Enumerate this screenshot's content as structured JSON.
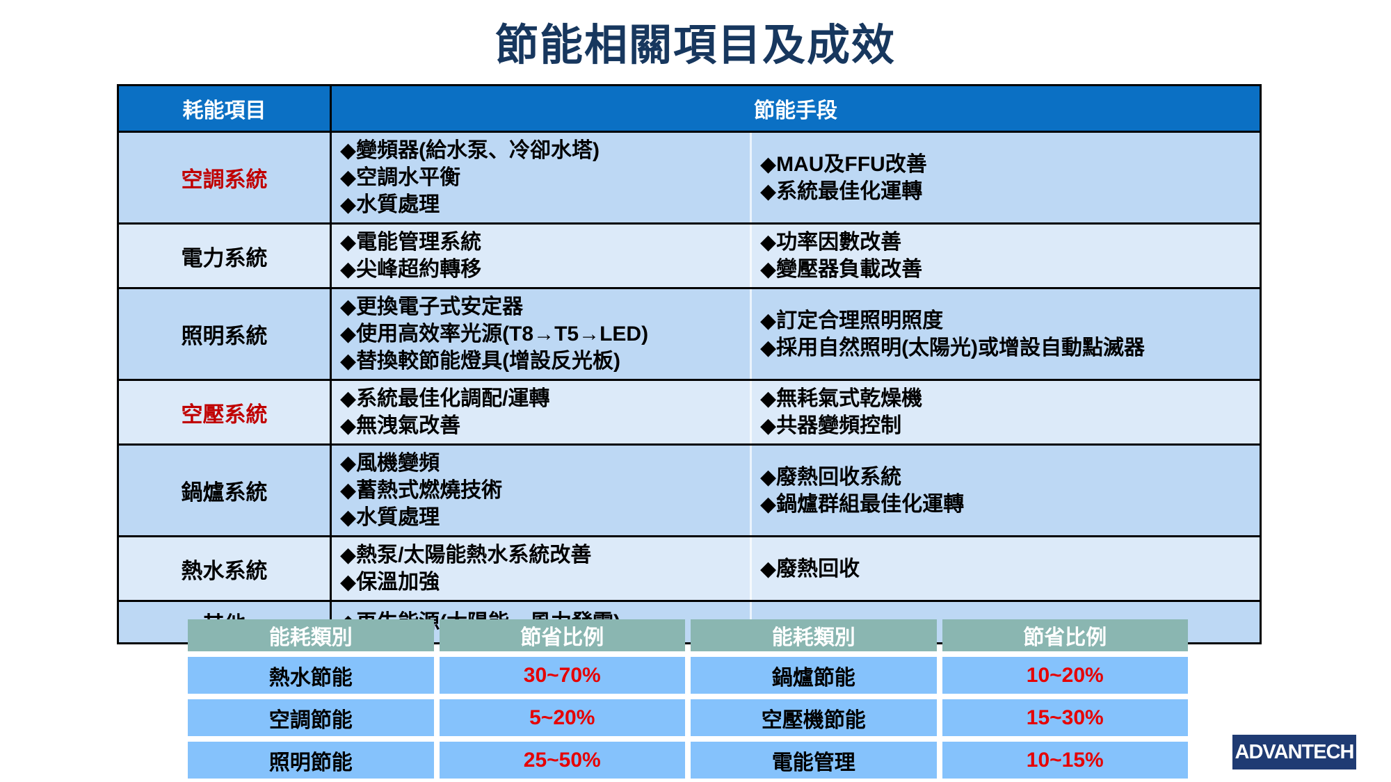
{
  "title": "節能相關項目及成效",
  "main_table": {
    "headers": {
      "item": "耗能項目",
      "methods": "節能手段"
    },
    "rows": [
      {
        "label": "空調系統",
        "red": true,
        "col1": [
          "◆變頻器(給水泵、冷卻水塔)",
          "◆空調水平衡",
          "◆水質處理"
        ],
        "col2": [
          "◆MAU及FFU改善",
          "◆系統最佳化運轉"
        ]
      },
      {
        "label": "電力系統",
        "red": false,
        "col1": [
          "◆電能管理系統",
          "◆尖峰超約轉移"
        ],
        "col2": [
          "◆功率因數改善",
          "◆變壓器負載改善"
        ]
      },
      {
        "label": "照明系統",
        "red": false,
        "col1": [
          "◆更換電子式安定器",
          "◆使用高效率光源(T8→T5→LED)",
          "◆替換較節能燈具(增設反光板)"
        ],
        "col2": [
          "◆訂定合理照明照度",
          "◆採用自然照明(太陽光)或增設自動點滅器"
        ]
      },
      {
        "label": "空壓系統",
        "red": true,
        "col1": [
          "◆系統最佳化調配/運轉",
          "◆無洩氣改善"
        ],
        "col2": [
          "◆無耗氣式乾燥機",
          "◆共器變頻控制"
        ]
      },
      {
        "label": "鍋爐系統",
        "red": false,
        "col1": [
          "◆風機變頻",
          "◆蓄熱式燃燒技術",
          "◆水質處理"
        ],
        "col2": [
          "◆廢熱回收系統",
          "◆鍋爐群組最佳化運轉"
        ]
      },
      {
        "label": "熱水系統",
        "red": false,
        "col1": [
          "◆熱泵/太陽能熱水系統改善",
          "◆保溫加強"
        ],
        "col2": [
          "◆廢熱回收"
        ]
      },
      {
        "label": "其他",
        "red": false,
        "col1": [
          "◆再生能源(太陽能、風力發電)"
        ],
        "col2": []
      }
    ]
  },
  "summary_table": {
    "headers": [
      "能耗類別",
      "節省比例",
      "能耗類別",
      "節省比例"
    ],
    "rows": [
      [
        "熱水節能",
        "30~70%",
        "鍋爐節能",
        "10~20%"
      ],
      [
        "空調節能",
        "5~20%",
        "空壓機節能",
        "15~30%"
      ],
      [
        "照明節能",
        "25~50%",
        "電能管理",
        "10~15%"
      ]
    ]
  },
  "logo": {
    "text": "ADVANTECH"
  },
  "colors": {
    "title": "#17375E",
    "table_header_bg": "#0B70C4",
    "row_shade_a": "#BDD8F4",
    "row_shade_b": "#DCEAF9",
    "label_red": "#C00000",
    "percent_red": "#E60000",
    "summary_header_bg": "#8AB6B1",
    "summary_row_bg": "#85C2FC",
    "logo_bg": "#1F3B73"
  }
}
